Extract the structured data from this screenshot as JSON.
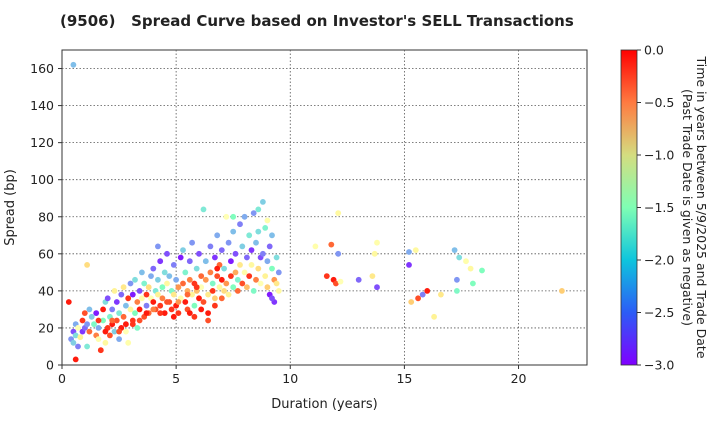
{
  "chart_data": {
    "type": "scatter",
    "title": "(9506)   Spread Curve based on Investor's SELL Transactions",
    "xlabel": "Duration (years)",
    "ylabel": "Spread (bp)",
    "xlim": [
      0,
      23
    ],
    "ylim": [
      0,
      170
    ],
    "xticks": [
      0,
      5,
      10,
      15,
      20
    ],
    "yticks": [
      0,
      20,
      40,
      60,
      80,
      100,
      120,
      140,
      160
    ],
    "grid": true,
    "colorbar": {
      "label_line1": "Time in years between 5/9/2025 and Trade Date",
      "label_line2": "(Past Trade Date is given as negative)",
      "range": [
        -3.0,
        0.0
      ],
      "ticks": [
        "0.0",
        "−0.5",
        "−1.0",
        "−1.5",
        "−2.0",
        "−2.5",
        "−3.0"
      ],
      "colormap": "rainbow"
    },
    "points_xyc": [
      [
        0.5,
        162,
        -2.2
      ],
      [
        0.3,
        34,
        -0.1
      ],
      [
        0.4,
        14,
        -2.4
      ],
      [
        0.5,
        12,
        -2.1
      ],
      [
        0.5,
        18,
        -2.7
      ],
      [
        0.6,
        22,
        -2.3
      ],
      [
        0.6,
        16,
        -2.0
      ],
      [
        0.7,
        20,
        -1.5
      ],
      [
        0.6,
        3,
        -0.1
      ],
      [
        0.7,
        10,
        -2.5
      ],
      [
        0.8,
        15,
        -1.2
      ],
      [
        0.9,
        24,
        -0.2
      ],
      [
        0.9,
        18,
        -2.8
      ],
      [
        1.0,
        28,
        -0.3
      ],
      [
        1.0,
        20,
        -2.6
      ],
      [
        1.1,
        10,
        -1.9
      ],
      [
        1.1,
        22,
        -2.4
      ],
      [
        1.2,
        30,
        -2.2
      ],
      [
        1.2,
        18,
        -0.4
      ],
      [
        1.1,
        54,
        -1.0
      ],
      [
        1.3,
        26,
        -2.1
      ],
      [
        1.4,
        22,
        -1.7
      ],
      [
        1.5,
        16,
        -0.5
      ],
      [
        1.5,
        28,
        -2.9
      ],
      [
        1.6,
        20,
        -2.3
      ],
      [
        1.6,
        14,
        -1.4
      ],
      [
        1.7,
        8,
        -0.2
      ],
      [
        1.8,
        30,
        -0.1
      ],
      [
        1.8,
        24,
        -1.6
      ],
      [
        1.9,
        34,
        -2.0
      ],
      [
        1.9,
        12,
        -1.3
      ],
      [
        2.0,
        36,
        -2.7
      ],
      [
        2.0,
        20,
        -0.2
      ],
      [
        2.1,
        26,
        -1.8
      ],
      [
        2.1,
        16,
        -0.3
      ],
      [
        2.2,
        30,
        -2.5
      ],
      [
        2.2,
        22,
        -0.1
      ],
      [
        2.3,
        40,
        -1.2
      ],
      [
        2.3,
        18,
        -2.1
      ],
      [
        2.4,
        34,
        -2.8
      ],
      [
        2.4,
        24,
        -0.3
      ],
      [
        2.5,
        28,
        -1.9
      ],
      [
        2.5,
        14,
        -2.3
      ],
      [
        2.6,
        38,
        -2.6
      ],
      [
        2.6,
        20,
        -0.1
      ],
      [
        2.7,
        42,
        -1.1
      ],
      [
        2.7,
        26,
        -0.4
      ],
      [
        2.8,
        32,
        -2.2
      ],
      [
        2.8,
        18,
        -1.5
      ],
      [
        2.9,
        36,
        -0.2
      ],
      [
        2.9,
        12,
        -1.4
      ],
      [
        3.0,
        44,
        -2.4
      ],
      [
        3.0,
        30,
        -1.3
      ],
      [
        3.1,
        24,
        -0.2
      ],
      [
        3.1,
        38,
        -2.9
      ],
      [
        3.2,
        28,
        -1.6
      ],
      [
        3.2,
        46,
        -2.0
      ],
      [
        3.3,
        34,
        -0.5
      ],
      [
        3.3,
        20,
        -1.7
      ],
      [
        3.4,
        40,
        -2.7
      ],
      [
        3.4,
        30,
        -0.1
      ],
      [
        3.5,
        50,
        -2.2
      ],
      [
        3.5,
        36,
        -1.4
      ],
      [
        3.6,
        26,
        -0.3
      ],
      [
        3.6,
        44,
        -1.8
      ],
      [
        3.7,
        32,
        -2.5
      ],
      [
        3.7,
        38,
        -0.2
      ],
      [
        3.8,
        42,
        -1.0
      ],
      [
        3.8,
        28,
        -0.4
      ],
      [
        3.9,
        48,
        -2.3
      ],
      [
        3.9,
        36,
        -1.5
      ],
      [
        4.0,
        34,
        -0.1
      ],
      [
        4.0,
        52,
        -2.6
      ],
      [
        4.1,
        40,
        -1.9
      ],
      [
        4.1,
        30,
        -0.3
      ],
      [
        4.2,
        46,
        -2.1
      ],
      [
        4.2,
        38,
        -1.2
      ],
      [
        4.2,
        64,
        -2.4
      ],
      [
        4.3,
        32,
        -0.2
      ],
      [
        4.3,
        56,
        -2.8
      ],
      [
        4.4,
        42,
        -1.6
      ],
      [
        4.4,
        36,
        -0.5
      ],
      [
        4.5,
        50,
        -2.0
      ],
      [
        4.5,
        28,
        -0.1
      ],
      [
        4.6,
        44,
        -1.3
      ],
      [
        4.6,
        60,
        -2.7
      ],
      [
        4.7,
        34,
        -0.3
      ],
      [
        4.7,
        48,
        -2.2
      ],
      [
        4.8,
        40,
        -1.7
      ],
      [
        4.8,
        30,
        -0.2
      ],
      [
        4.9,
        54,
        -2.5
      ],
      [
        4.9,
        38,
        -1.1
      ],
      [
        5.0,
        32,
        -0.1
      ],
      [
        5.0,
        46,
        -2.3
      ],
      [
        5.1,
        42,
        -0.6
      ],
      [
        5.1,
        28,
        -0.2
      ],
      [
        5.2,
        58,
        -2.9
      ],
      [
        5.2,
        36,
        -1.4
      ],
      [
        5.3,
        44,
        -0.4
      ],
      [
        5.3,
        62,
        -2.1
      ],
      [
        5.4,
        34,
        -0.1
      ],
      [
        5.4,
        50,
        -1.8
      ],
      [
        5.5,
        40,
        -0.7
      ],
      [
        5.5,
        30,
        -0.3
      ],
      [
        5.6,
        56,
        -2.6
      ],
      [
        5.6,
        46,
        -0.5
      ],
      [
        5.7,
        38,
        -1.2
      ],
      [
        5.7,
        66,
        -2.4
      ],
      [
        5.8,
        44,
        -0.2
      ],
      [
        5.8,
        32,
        -1.6
      ],
      [
        5.9,
        52,
        -2.0
      ],
      [
        5.9,
        40,
        -0.8
      ],
      [
        6.0,
        36,
        -0.1
      ],
      [
        6.0,
        60,
        -2.7
      ],
      [
        6.1,
        48,
        -0.4
      ],
      [
        6.1,
        42,
        -1.5
      ],
      [
        6.2,
        84,
        -1.9
      ],
      [
        6.2,
        34,
        -0.3
      ],
      [
        6.3,
        56,
        -2.2
      ],
      [
        6.3,
        46,
        -0.6
      ],
      [
        6.4,
        38,
        -1.1
      ],
      [
        6.4,
        28,
        -0.1
      ],
      [
        6.5,
        64,
        -2.5
      ],
      [
        6.5,
        50,
        -0.5
      ],
      [
        6.6,
        44,
        -1.7
      ],
      [
        6.6,
        40,
        -0.2
      ],
      [
        6.7,
        58,
        -2.8
      ],
      [
        6.7,
        36,
        -0.9
      ],
      [
        6.8,
        48,
        -0.3
      ],
      [
        6.8,
        70,
        -2.3
      ],
      [
        6.9,
        42,
        -1.3
      ],
      [
        6.9,
        54,
        -0.4
      ],
      [
        7.0,
        46,
        -0.1
      ],
      [
        7.0,
        62,
        -2.6
      ],
      [
        7.1,
        40,
        -1.0
      ],
      [
        7.1,
        52,
        -2.0
      ],
      [
        7.2,
        80,
        -1.5
      ],
      [
        7.2,
        44,
        -0.6
      ],
      [
        7.3,
        66,
        -2.4
      ],
      [
        7.3,
        38,
        -1.2
      ],
      [
        7.4,
        56,
        -2.9
      ],
      [
        7.4,
        48,
        -0.2
      ],
      [
        7.5,
        42,
        -1.6
      ],
      [
        7.5,
        72,
        -2.2
      ],
      [
        7.6,
        50,
        -0.7
      ],
      [
        7.6,
        60,
        -2.7
      ],
      [
        7.7,
        46,
        -1.8
      ],
      [
        7.7,
        40,
        -0.4
      ],
      [
        7.8,
        76,
        -2.5
      ],
      [
        7.8,
        54,
        -1.1
      ],
      [
        7.9,
        44,
        -0.3
      ],
      [
        7.9,
        64,
        -2.1
      ],
      [
        8.0,
        80,
        -2.3
      ],
      [
        8.0,
        50,
        -1.4
      ],
      [
        8.1,
        58,
        -2.6
      ],
      [
        8.1,
        42,
        -0.8
      ],
      [
        8.2,
        70,
        -1.9
      ],
      [
        8.2,
        48,
        -0.2
      ],
      [
        8.3,
        62,
        -2.8
      ],
      [
        8.3,
        54,
        -1.3
      ],
      [
        8.4,
        82,
        -2.4
      ],
      [
        8.4,
        40,
        -1.7
      ],
      [
        8.5,
        66,
        -2.2
      ],
      [
        8.5,
        46,
        -0.5
      ],
      [
        8.6,
        72,
        -2.0
      ],
      [
        8.6,
        52,
        -1.0
      ],
      [
        8.7,
        58,
        -2.7
      ],
      [
        8.7,
        44,
        -1.5
      ],
      [
        8.8,
        88,
        -2.1
      ],
      [
        8.8,
        60,
        -2.5
      ],
      [
        8.9,
        48,
        -1.2
      ],
      [
        8.9,
        74,
        -1.8
      ],
      [
        9.0,
        56,
        -2.3
      ],
      [
        9.0,
        42,
        -0.9
      ],
      [
        9.1,
        64,
        -2.6
      ],
      [
        9.1,
        38,
        -2.9
      ],
      [
        9.2,
        52,
        -1.6
      ],
      [
        9.2,
        70,
        -2.2
      ],
      [
        9.3,
        46,
        -0.6
      ],
      [
        9.3,
        34,
        -2.8
      ],
      [
        9.4,
        58,
        -2.0
      ],
      [
        9.4,
        44,
        -1.1
      ],
      [
        9.5,
        50,
        -2.4
      ],
      [
        9.5,
        40,
        -1.3
      ],
      [
        9.2,
        36,
        -2.7
      ],
      [
        9.0,
        78,
        -1.4
      ],
      [
        8.6,
        84,
        -1.9
      ],
      [
        7.5,
        80,
        -1.6
      ],
      [
        6.8,
        52,
        -0.1
      ],
      [
        5.9,
        42,
        -0.2
      ],
      [
        5.5,
        38,
        -0.4
      ],
      [
        5.1,
        34,
        -0.6
      ],
      [
        4.9,
        26,
        -0.1
      ],
      [
        4.6,
        34,
        -0.3
      ],
      [
        4.3,
        28,
        -0.2
      ],
      [
        4.0,
        30,
        -0.5
      ],
      [
        3.7,
        28,
        -0.1
      ],
      [
        3.4,
        24,
        -0.3
      ],
      [
        3.1,
        22,
        -0.2
      ],
      [
        2.8,
        22,
        -0.1
      ],
      [
        2.5,
        18,
        -0.3
      ],
      [
        2.2,
        24,
        -0.4
      ],
      [
        1.9,
        18,
        -0.1
      ],
      [
        1.6,
        24,
        -0.2
      ],
      [
        5.6,
        28,
        -0.1
      ],
      [
        5.8,
        26,
        -0.2
      ],
      [
        6.1,
        30,
        -0.1
      ],
      [
        6.4,
        24,
        -0.3
      ],
      [
        6.7,
        32,
        -0.2
      ],
      [
        7.0,
        36,
        -0.4
      ],
      [
        11.1,
        64,
        -1.4
      ],
      [
        11.6,
        48,
        -0.2
      ],
      [
        11.8,
        65,
        -0.4
      ],
      [
        11.9,
        46,
        -0.1
      ],
      [
        12.0,
        44,
        -0.3
      ],
      [
        12.1,
        82,
        -1.3
      ],
      [
        12.1,
        60,
        -2.4
      ],
      [
        12.2,
        45,
        -1.5
      ],
      [
        13.0,
        46,
        -2.6
      ],
      [
        13.6,
        48,
        -1.1
      ],
      [
        13.7,
        60,
        -1.3
      ],
      [
        13.8,
        66,
        -1.4
      ],
      [
        13.8,
        42,
        -2.7
      ],
      [
        15.2,
        61,
        -2.3
      ],
      [
        15.2,
        54,
        -2.8
      ],
      [
        15.3,
        34,
        -0.9
      ],
      [
        15.5,
        62,
        -1.3
      ],
      [
        15.6,
        36,
        -0.3
      ],
      [
        15.8,
        38,
        -2.5
      ],
      [
        16.0,
        40,
        -0.1
      ],
      [
        16.3,
        26,
        -1.2
      ],
      [
        16.6,
        38,
        -1.1
      ],
      [
        17.2,
        62,
        -2.2
      ],
      [
        17.3,
        46,
        -2.4
      ],
      [
        17.3,
        40,
        -1.7
      ],
      [
        17.4,
        58,
        -2.0
      ],
      [
        17.7,
        56,
        -1.4
      ],
      [
        17.9,
        52,
        -1.3
      ],
      [
        18.0,
        44,
        -1.6
      ],
      [
        18.4,
        51,
        -1.6
      ],
      [
        21.9,
        40,
        -0.9
      ]
    ]
  }
}
